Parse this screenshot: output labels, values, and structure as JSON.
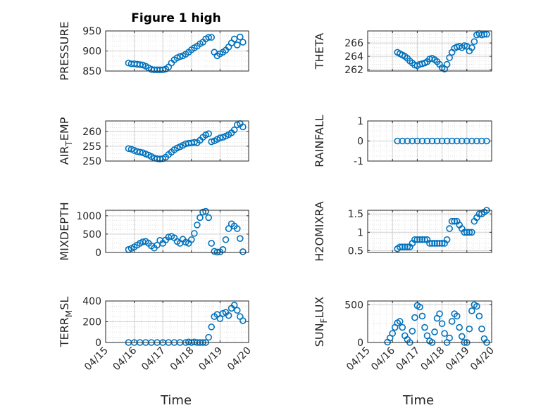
{
  "figure_title": "Figure 1 high",
  "x_axis_label": "Time",
  "x_tick_labels": [
    "04/15",
    "04/16",
    "04/17",
    "04/18",
    "04/19",
    "04/20"
  ],
  "marker_color": "#0072BD",
  "chart_data": [
    {
      "type": "scatter",
      "ylabel": "PRESSURE",
      "ylim": [
        850,
        950
      ],
      "yticks": [
        850,
        900,
        950
      ],
      "xlim": [
        15,
        20
      ],
      "grid": true,
      "title": "Figure 1 high",
      "x": [
        15.8,
        15.9,
        16.0,
        16.1,
        16.2,
        16.3,
        16.4,
        16.5,
        16.6,
        16.7,
        16.8,
        16.9,
        17.0,
        17.1,
        17.2,
        17.3,
        17.4,
        17.5,
        17.6,
        17.7,
        17.8,
        17.9,
        18.0,
        18.1,
        18.2,
        18.3,
        18.4,
        18.5,
        18.6,
        18.7,
        18.8,
        18.9,
        19.0,
        19.1,
        19.2,
        19.3,
        19.4,
        19.5,
        19.6,
        19.7,
        19.8
      ],
      "y": [
        870,
        868,
        868,
        867,
        866,
        865,
        862,
        858,
        854,
        853,
        853,
        853,
        853,
        855,
        860,
        870,
        878,
        883,
        886,
        888,
        892,
        897,
        903,
        908,
        912,
        918,
        922,
        930,
        934,
        934,
        897,
        888,
        893,
        897,
        902,
        910,
        920,
        930,
        915,
        935,
        922
      ]
    },
    {
      "type": "scatter",
      "ylabel": "THETA",
      "ylim": [
        261.8,
        267.8
      ],
      "yticks": [
        262,
        264,
        266
      ],
      "xlim": [
        15,
        20
      ],
      "grid": true,
      "x": [
        16.2,
        16.3,
        16.4,
        16.5,
        16.6,
        16.7,
        16.8,
        16.9,
        17.0,
        17.1,
        17.2,
        17.3,
        17.4,
        17.5,
        17.6,
        17.7,
        17.8,
        17.9,
        18.0,
        18.1,
        18.2,
        18.3,
        18.4,
        18.5,
        18.6,
        18.7,
        18.8,
        18.9,
        19.0,
        19.1,
        19.2,
        19.3,
        19.4,
        19.5,
        19.6,
        19.7,
        19.8
      ],
      "y": [
        264.6,
        264.4,
        264.2,
        264.0,
        263.7,
        263.3,
        263.0,
        262.7,
        262.6,
        262.8,
        262.9,
        263.0,
        263.2,
        263.6,
        263.7,
        263.5,
        263.2,
        262.8,
        262.3,
        262.1,
        262.8,
        263.8,
        264.6,
        265.2,
        265.4,
        265.5,
        265.3,
        265.6,
        265.5,
        264.8,
        265.3,
        266.2,
        267.2,
        267.4,
        267.2,
        267.3,
        267.3
      ]
    },
    {
      "type": "scatter",
      "ylabel": "AIR_TEMP",
      "ylim": [
        250,
        263.5
      ],
      "yticks": [
        250,
        255,
        260
      ],
      "xlim": [
        15,
        20
      ],
      "grid": true,
      "x": [
        15.8,
        15.9,
        16.0,
        16.1,
        16.2,
        16.3,
        16.4,
        16.5,
        16.6,
        16.7,
        16.8,
        16.9,
        17.0,
        17.1,
        17.2,
        17.3,
        17.4,
        17.5,
        17.6,
        17.7,
        17.8,
        17.9,
        18.0,
        18.1,
        18.2,
        18.3,
        18.4,
        18.5,
        18.6,
        18.7,
        18.8,
        18.9,
        19.0,
        19.1,
        19.2,
        19.3,
        19.4,
        19.5,
        19.6,
        19.7,
        19.8
      ],
      "y": [
        254.2,
        254.0,
        253.6,
        253.2,
        253.0,
        252.8,
        252.4,
        252.0,
        251.5,
        251.0,
        250.8,
        250.7,
        250.8,
        251.3,
        252.2,
        253.0,
        253.8,
        254.4,
        254.8,
        255.3,
        255.8,
        256.0,
        256.1,
        256.3,
        256.2,
        257.0,
        258.0,
        258.8,
        259.2,
        256.5,
        256.8,
        257.3,
        257.8,
        258.0,
        258.4,
        258.9,
        259.5,
        260.5,
        262.2,
        262.6,
        261.5
      ]
    },
    {
      "type": "scatter",
      "ylabel": "RAINFALL",
      "ylim": [
        -1,
        1
      ],
      "yticks": [
        -1,
        0,
        1
      ],
      "xlim": [
        15,
        20
      ],
      "grid": true,
      "x": [
        16.2,
        16.4,
        16.6,
        16.8,
        17.0,
        17.2,
        17.4,
        17.6,
        17.8,
        18.0,
        18.2,
        18.4,
        18.6,
        18.8,
        19.0,
        19.2,
        19.4,
        19.6,
        19.8
      ],
      "y": [
        0,
        0,
        0,
        0,
        0,
        0,
        0,
        0,
        0,
        0,
        0,
        0,
        0,
        0,
        0,
        0,
        0,
        0,
        0
      ]
    },
    {
      "type": "scatter",
      "ylabel": "MIXDEPTH",
      "ylim": [
        0,
        1150
      ],
      "yticks": [
        0,
        500,
        1000
      ],
      "xlim": [
        15,
        20
      ],
      "grid": true,
      "x": [
        15.8,
        15.9,
        16.0,
        16.1,
        16.2,
        16.3,
        16.4,
        16.5,
        16.6,
        16.7,
        16.8,
        16.9,
        17.0,
        17.1,
        17.2,
        17.3,
        17.4,
        17.5,
        17.6,
        17.7,
        17.8,
        17.9,
        18.0,
        18.1,
        18.2,
        18.3,
        18.4,
        18.5,
        18.6,
        18.7,
        18.8,
        18.9,
        19.0,
        19.1,
        19.2,
        19.3,
        19.4,
        19.5,
        19.6,
        19.7,
        19.8
      ],
      "y": [
        80,
        110,
        150,
        200,
        250,
        290,
        300,
        250,
        180,
        120,
        200,
        330,
        250,
        340,
        420,
        440,
        400,
        300,
        250,
        360,
        280,
        250,
        350,
        520,
        750,
        950,
        1100,
        1120,
        950,
        250,
        30,
        10,
        15,
        80,
        350,
        650,
        780,
        720,
        650,
        380,
        20
      ]
    },
    {
      "type": "scatter",
      "ylabel": "H2OMIXRA",
      "ylim": [
        0.45,
        1.6
      ],
      "yticks": [
        0.5,
        1,
        1.5
      ],
      "xlim": [
        15,
        20
      ],
      "grid": true,
      "x": [
        16.2,
        16.3,
        16.4,
        16.5,
        16.6,
        16.7,
        16.8,
        16.9,
        17.0,
        17.1,
        17.2,
        17.3,
        17.4,
        17.5,
        17.6,
        17.7,
        17.8,
        17.9,
        18.0,
        18.1,
        18.2,
        18.3,
        18.4,
        18.5,
        18.6,
        18.7,
        18.8,
        18.9,
        19.0,
        19.1,
        19.2,
        19.3,
        19.4,
        19.5,
        19.6,
        19.7,
        19.8
      ],
      "y": [
        0.55,
        0.6,
        0.6,
        0.6,
        0.6,
        0.6,
        0.7,
        0.8,
        0.8,
        0.8,
        0.8,
        0.8,
        0.8,
        0.7,
        0.7,
        0.7,
        0.7,
        0.7,
        0.7,
        0.7,
        0.8,
        1.1,
        1.3,
        1.3,
        1.3,
        1.2,
        1.1,
        1.0,
        1.0,
        1.0,
        1.0,
        1.3,
        1.4,
        1.5,
        1.5,
        1.55,
        1.6
      ]
    },
    {
      "type": "scatter",
      "ylabel": "TERR_MSL",
      "ylim": [
        0,
        400
      ],
      "yticks": [
        0,
        200,
        400
      ],
      "xlim": [
        15,
        20
      ],
      "grid": true,
      "x": [
        15.8,
        16.0,
        16.2,
        16.4,
        16.6,
        16.8,
        17.0,
        17.2,
        17.4,
        17.6,
        17.8,
        17.9,
        18.0,
        18.1,
        18.2,
        18.3,
        18.4,
        18.5,
        18.6,
        18.7,
        18.8,
        18.9,
        19.0,
        19.1,
        19.2,
        19.3,
        19.4,
        19.5,
        19.6,
        19.7,
        19.8
      ],
      "y": [
        0,
        0,
        0,
        0,
        0,
        0,
        0,
        0,
        0,
        0,
        0,
        5,
        0,
        5,
        0,
        0,
        0,
        0,
        50,
        150,
        250,
        270,
        230,
        280,
        290,
        260,
        330,
        360,
        310,
        250,
        210
      ]
    },
    {
      "type": "scatter",
      "ylabel": "SUN_FLUX",
      "ylim": [
        0,
        550
      ],
      "yticks": [
        0,
        500
      ],
      "xlim": [
        15,
        20
      ],
      "grid": true,
      "x": [
        15.8,
        15.9,
        16.0,
        16.1,
        16.2,
        16.3,
        16.4,
        16.5,
        16.6,
        16.7,
        16.8,
        16.9,
        17.0,
        17.1,
        17.2,
        17.3,
        17.4,
        17.5,
        17.6,
        17.7,
        17.8,
        17.9,
        18.0,
        18.1,
        18.2,
        18.3,
        18.4,
        18.5,
        18.6,
        18.7,
        18.8,
        18.9,
        19.0,
        19.1,
        19.2,
        19.3,
        19.4,
        19.5,
        19.6,
        19.7,
        19.8
      ],
      "y": [
        5,
        60,
        120,
        200,
        260,
        280,
        200,
        90,
        40,
        0,
        150,
        330,
        490,
        470,
        350,
        200,
        90,
        20,
        0,
        140,
        320,
        380,
        250,
        120,
        0,
        60,
        280,
        380,
        350,
        200,
        80,
        0,
        0,
        180,
        420,
        500,
        480,
        350,
        180,
        50,
        0
      ]
    }
  ]
}
